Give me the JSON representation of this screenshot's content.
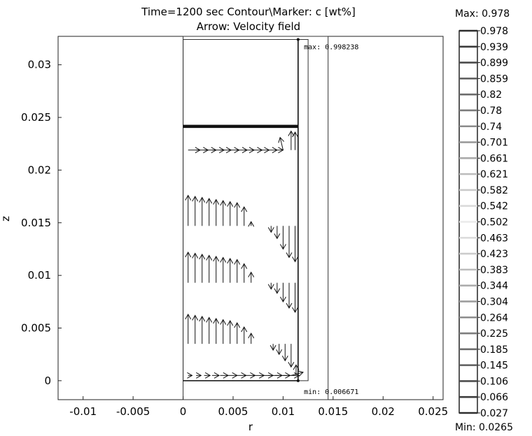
{
  "chart_data": {
    "type": "contour",
    "title": "Time=1200 sec   Contour\\Marker: c [wt%]",
    "subtitle": "Arrow: Velocity field",
    "xlabel": "r",
    "ylabel": "z",
    "xlim": [
      -0.0125,
      0.026
    ],
    "ylim": [
      -0.0018,
      0.0327
    ],
    "xticks": [
      "-0.01",
      "-0.005",
      "0",
      "0.005",
      "0.01",
      "0.015",
      "0.02",
      "0.025"
    ],
    "xtick_values": [
      -0.01,
      -0.005,
      0,
      0.005,
      0.01,
      0.015,
      0.02,
      0.025
    ],
    "yticks": [
      "0",
      "0.005",
      "0.01",
      "0.015",
      "0.02",
      "0.025",
      "0.03"
    ],
    "ytick_values": [
      0,
      0.005,
      0.01,
      0.015,
      0.02,
      0.025,
      0.03
    ],
    "annotations": {
      "max": {
        "text": "max: 0.998238",
        "r": 0.0118,
        "z": 0.0324
      },
      "min": {
        "text": "min: 0.006671",
        "r": 0.0118,
        "z": -0.0002
      }
    },
    "geometry": {
      "outer_rect": {
        "r": [
          0,
          0.0145
        ],
        "z": [
          -0.0018,
          0.0327
        ]
      },
      "inner_rect": {
        "r": [
          0,
          0.0125
        ],
        "z": [
          0,
          0.0324
        ]
      },
      "inner_line_r": 0.0115,
      "top_line_z": 0.0324,
      "interface_band_z": [
        0.024,
        0.0243
      ]
    },
    "colorbar": {
      "max_label": "Max: 0.978",
      "min_label": "Min: 0.0265",
      "levels": [
        "0.978",
        "0.939",
        "0.899",
        "0.859",
        "0.82",
        "0.78",
        "0.74",
        "0.701",
        "0.661",
        "0.621",
        "0.582",
        "0.542",
        "0.502",
        "0.463",
        "0.423",
        "0.383",
        "0.344",
        "0.304",
        "0.264",
        "0.225",
        "0.185",
        "0.145",
        "0.106",
        "0.066",
        "0.027"
      ]
    },
    "arrow_rows": [
      {
        "z": 0.0219,
        "points": [
          [
            0.0005,
            0,
            0.0012
          ],
          [
            0.0013,
            0,
            0.0012
          ],
          [
            0.0021,
            0,
            0.0012
          ],
          [
            0.0029,
            0,
            0.0012
          ],
          [
            0.0037,
            0,
            0.0011
          ],
          [
            0.0045,
            0,
            0.0011
          ],
          [
            0.0053,
            0,
            0.0011
          ],
          [
            0.0061,
            0,
            0.001
          ],
          [
            0.0069,
            0,
            0.001
          ],
          [
            0.0077,
            0,
            0.0009
          ],
          [
            0.0085,
            0,
            0.0009
          ],
          [
            0.0092,
            0,
            0.0008
          ],
          [
            0.01,
            0.0012,
            -0.0003
          ],
          [
            0.0108,
            0.0018,
            0
          ],
          [
            0.0112,
            0.0017,
            0
          ]
        ]
      },
      {
        "z": 0.0147,
        "points": [
          [
            0.0005,
            0.0029,
            0
          ],
          [
            0.0012,
            0.0028,
            0
          ],
          [
            0.0019,
            0.0027,
            0
          ],
          [
            0.0026,
            0.0026,
            0
          ],
          [
            0.0033,
            0.0025,
            0
          ],
          [
            0.004,
            0.0024,
            0
          ],
          [
            0.0047,
            0.0023,
            0
          ],
          [
            0.0054,
            0.0022,
            0
          ],
          [
            0.0061,
            0.0018,
            0
          ],
          [
            0.0068,
            0.0004,
            0
          ],
          [
            0.0088,
            -0.0006,
            0
          ],
          [
            0.0094,
            -0.0012,
            0
          ],
          [
            0.01,
            -0.0022,
            0
          ],
          [
            0.0106,
            -0.003,
            0
          ],
          [
            0.0112,
            -0.0034,
            0
          ]
        ]
      },
      {
        "z": 0.0093,
        "points": [
          [
            0.0005,
            0.0029,
            0
          ],
          [
            0.0012,
            0.0028,
            0
          ],
          [
            0.0019,
            0.0027,
            0
          ],
          [
            0.0026,
            0.0026,
            0
          ],
          [
            0.0033,
            0.0025,
            0
          ],
          [
            0.004,
            0.0024,
            0
          ],
          [
            0.0047,
            0.0023,
            0
          ],
          [
            0.0054,
            0.0022,
            0
          ],
          [
            0.0061,
            0.0018,
            0
          ],
          [
            0.0068,
            0.001,
            0
          ],
          [
            0.0088,
            -0.0006,
            0
          ],
          [
            0.0094,
            -0.001,
            0
          ],
          [
            0.01,
            -0.0018,
            0
          ],
          [
            0.0106,
            -0.0024,
            0
          ],
          [
            0.0112,
            -0.0028,
            0
          ]
        ]
      },
      {
        "z": 0.0035,
        "points": [
          [
            0.0005,
            0.0028,
            0
          ],
          [
            0.0012,
            0.0027,
            0
          ],
          [
            0.0019,
            0.0026,
            0
          ],
          [
            0.0026,
            0.0025,
            0
          ],
          [
            0.0033,
            0.0024,
            0
          ],
          [
            0.004,
            0.0023,
            0
          ],
          [
            0.0047,
            0.0022,
            0
          ],
          [
            0.0054,
            0.002,
            0
          ],
          [
            0.0061,
            0.0016,
            0
          ],
          [
            0.0068,
            0.001,
            0
          ],
          [
            0.009,
            -0.0006,
            0
          ],
          [
            0.0096,
            -0.001,
            0
          ],
          [
            0.0102,
            -0.0016,
            0
          ],
          [
            0.0108,
            -0.0022,
            0
          ]
        ]
      },
      {
        "z": 0.0005,
        "points": [
          [
            0.0005,
            0,
            0.0004
          ],
          [
            0.0013,
            0,
            0.0005
          ],
          [
            0.0021,
            0,
            0.0006
          ],
          [
            0.0029,
            0,
            0.0007
          ],
          [
            0.0037,
            0,
            0.0008
          ],
          [
            0.0045,
            0,
            0.0009
          ],
          [
            0.0053,
            0,
            0.001
          ],
          [
            0.0061,
            0,
            0.0011
          ],
          [
            0.0069,
            0,
            0.0012
          ],
          [
            0.0077,
            0,
            0.0013
          ],
          [
            0.0085,
            0,
            0.0014
          ],
          [
            0.0092,
            0,
            0.0015
          ],
          [
            0.01,
            0,
            0.0016
          ],
          [
            0.0108,
            0.0003,
            0.0012
          ],
          [
            0.0113,
            0.001,
            0
          ]
        ]
      }
    ]
  }
}
